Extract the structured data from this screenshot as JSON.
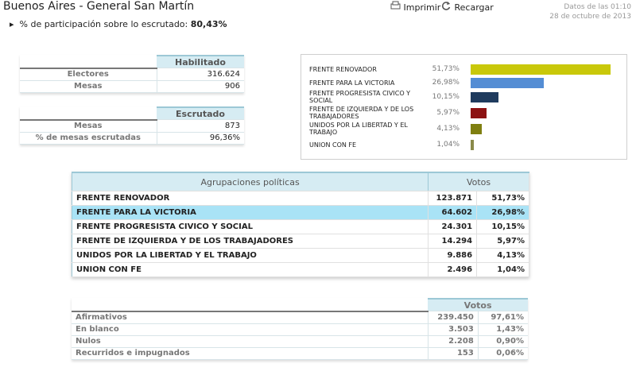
{
  "header": {
    "title": "Buenos Aires - General San Martín",
    "print": "Imprimir",
    "reload": "Recargar",
    "data_time": "Datos de las 01:10",
    "data_date": "28 de octubre de 2013"
  },
  "participation": {
    "label": "% de participación sobre lo escrutado:",
    "value": "80,43%"
  },
  "habilitado": {
    "header": "Habilitado",
    "rows": [
      [
        "Electores",
        "316.624"
      ],
      [
        "Mesas",
        "906"
      ]
    ]
  },
  "escrutado": {
    "header": "Escrutado",
    "rows": [
      [
        "Mesas",
        "873"
      ],
      [
        "% de mesas escrutadas",
        "96,36%"
      ]
    ]
  },
  "bars": {
    "items": [
      {
        "name": "FRENTE RENOVADOR",
        "value": 51.73,
        "value_label": "51,73%",
        "color": "#c9c80a"
      },
      {
        "name": "FRENTE PARA LA VICTORIA",
        "value": 26.98,
        "value_label": "26,98%",
        "color": "#548dd4"
      },
      {
        "name": "FRENTE PROGRESISTA CIVICO Y SOCIAL",
        "value": 10.15,
        "value_label": "10,15%",
        "color": "#1f3b5e"
      },
      {
        "name": "FRENTE DE IZQUIERDA Y DE LOS TRABAJADORES",
        "value": 5.97,
        "value_label": "5,97%",
        "color": "#8c1212"
      },
      {
        "name": "UNIDOS POR LA LIBERTAD Y EL TRABAJO",
        "value": 4.13,
        "value_label": "4,13%",
        "color": "#7f7f10"
      },
      {
        "name": "UNION CON FE",
        "value": 1.04,
        "value_label": "1,04%",
        "color": "#8a8a4a"
      }
    ]
  },
  "results": {
    "headers": [
      "Agrupaciones políticas",
      "Votos"
    ],
    "highlight_row": 1,
    "rows": [
      [
        "FRENTE RENOVADOR",
        "123.871",
        "51,73%"
      ],
      [
        "FRENTE PARA LA VICTORIA",
        "64.602",
        "26,98%"
      ],
      [
        "FRENTE PROGRESISTA CIVICO Y SOCIAL",
        "24.301",
        "10,15%"
      ],
      [
        "FRENTE DE IZQUIERDA Y DE LOS TRABAJADORES",
        "14.294",
        "5,97%"
      ],
      [
        "UNIDOS POR LA LIBERTAD Y EL TRABAJO",
        "9.886",
        "4,13%"
      ],
      [
        "UNION CON FE",
        "2.496",
        "1,04%"
      ]
    ]
  },
  "summary": {
    "header": "Votos",
    "rows": [
      [
        "Afirmativos",
        "239.450",
        "97,61%"
      ],
      [
        "En blanco",
        "3.503",
        "1,43%"
      ],
      [
        "Nulos",
        "2.208",
        "0,90%"
      ],
      [
        "Recurridos e impugnados",
        "153",
        "0,06%"
      ]
    ]
  }
}
